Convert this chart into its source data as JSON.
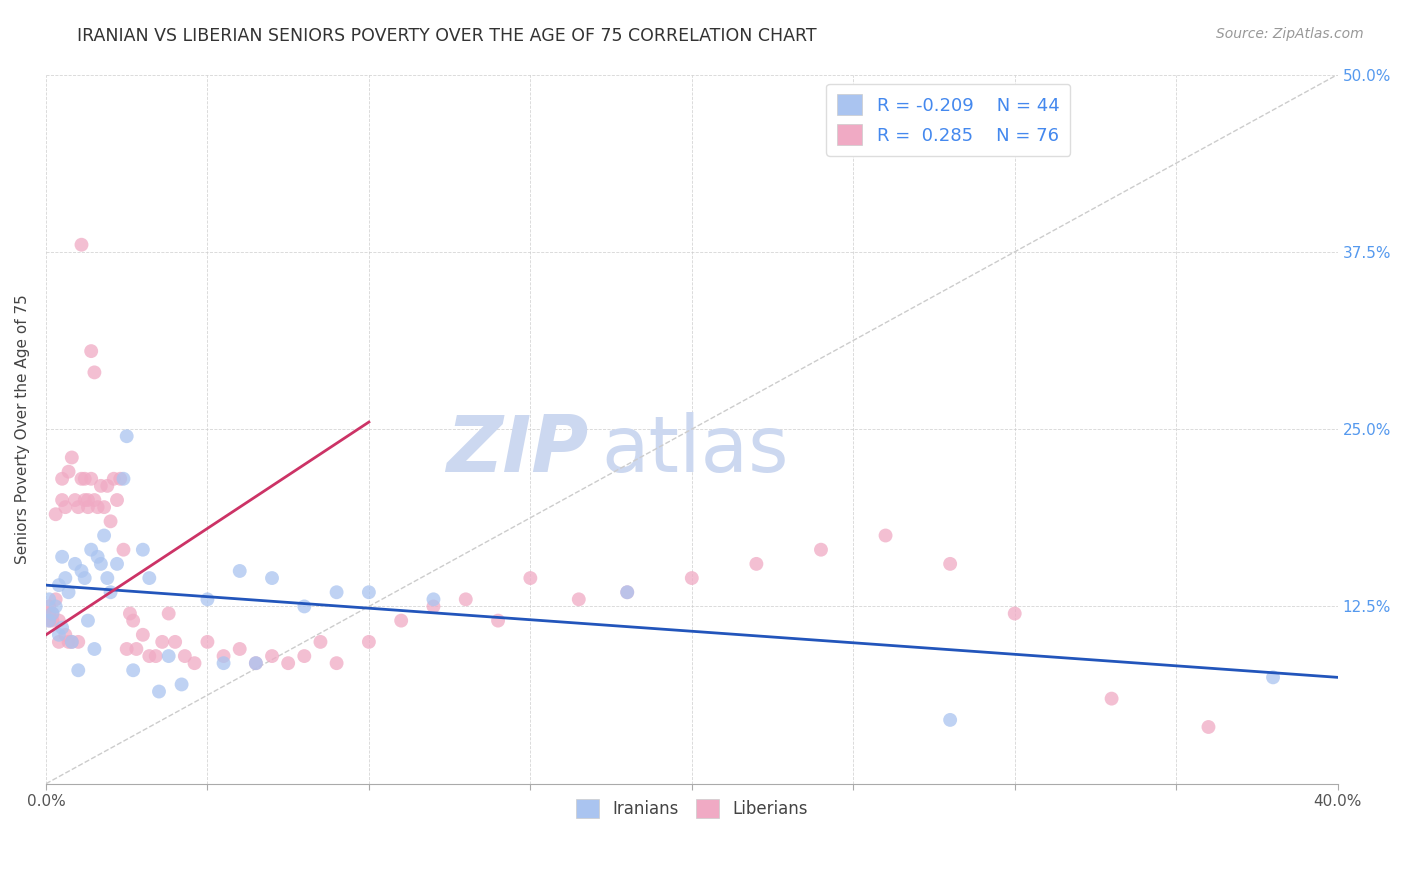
{
  "title": "IRANIAN VS LIBERIAN SENIORS POVERTY OVER THE AGE OF 75 CORRELATION CHART",
  "source": "Source: ZipAtlas.com",
  "ylabel": "Seniors Poverty Over the Age of 75",
  "xlim": [
    0.0,
    0.4
  ],
  "ylim": [
    0.0,
    0.5
  ],
  "xticks": [
    0.0,
    0.05,
    0.1,
    0.15,
    0.2,
    0.25,
    0.3,
    0.35,
    0.4
  ],
  "xticklabels": [
    "0.0%",
    "",
    "",
    "",
    "",
    "",
    "",
    "",
    "40.0%"
  ],
  "yticks": [
    0.0,
    0.125,
    0.25,
    0.375,
    0.5
  ],
  "yticklabels": [
    "",
    "12.5%",
    "25.0%",
    "37.5%",
    "50.0%"
  ],
  "legend_R_iranian": "-0.209",
  "legend_N_iranian": "44",
  "legend_R_liberian": "0.285",
  "legend_N_liberian": "76",
  "iranian_color": "#aac4f0",
  "liberian_color": "#f0aac4",
  "trend_iranian_color": "#2255bb",
  "trend_liberian_color": "#cc3366",
  "diagonal_color": "#cccccc",
  "watermark_color": "#ccd8f0",
  "iranians_x": [
    0.001,
    0.001,
    0.002,
    0.003,
    0.004,
    0.004,
    0.005,
    0.005,
    0.006,
    0.007,
    0.008,
    0.009,
    0.01,
    0.011,
    0.012,
    0.013,
    0.014,
    0.015,
    0.016,
    0.017,
    0.018,
    0.019,
    0.02,
    0.022,
    0.024,
    0.025,
    0.027,
    0.03,
    0.032,
    0.035,
    0.038,
    0.042,
    0.05,
    0.055,
    0.06,
    0.065,
    0.07,
    0.08,
    0.09,
    0.1,
    0.12,
    0.18,
    0.28,
    0.38
  ],
  "iranians_y": [
    0.13,
    0.115,
    0.12,
    0.125,
    0.105,
    0.14,
    0.11,
    0.16,
    0.145,
    0.135,
    0.1,
    0.155,
    0.08,
    0.15,
    0.145,
    0.115,
    0.165,
    0.095,
    0.16,
    0.155,
    0.175,
    0.145,
    0.135,
    0.155,
    0.215,
    0.245,
    0.08,
    0.165,
    0.145,
    0.065,
    0.09,
    0.07,
    0.13,
    0.085,
    0.15,
    0.085,
    0.145,
    0.125,
    0.135,
    0.135,
    0.13,
    0.135,
    0.045,
    0.075
  ],
  "liberians_x": [
    0.001,
    0.001,
    0.001,
    0.002,
    0.002,
    0.003,
    0.003,
    0.004,
    0.004,
    0.005,
    0.005,
    0.006,
    0.006,
    0.007,
    0.007,
    0.008,
    0.008,
    0.009,
    0.01,
    0.01,
    0.011,
    0.011,
    0.012,
    0.012,
    0.013,
    0.013,
    0.014,
    0.014,
    0.015,
    0.015,
    0.016,
    0.017,
    0.018,
    0.019,
    0.02,
    0.021,
    0.022,
    0.023,
    0.024,
    0.025,
    0.026,
    0.027,
    0.028,
    0.03,
    0.032,
    0.034,
    0.036,
    0.038,
    0.04,
    0.043,
    0.046,
    0.05,
    0.055,
    0.06,
    0.065,
    0.07,
    0.075,
    0.08,
    0.085,
    0.09,
    0.1,
    0.11,
    0.12,
    0.13,
    0.14,
    0.15,
    0.165,
    0.18,
    0.2,
    0.22,
    0.24,
    0.26,
    0.28,
    0.3,
    0.33,
    0.36
  ],
  "liberians_y": [
    0.115,
    0.12,
    0.125,
    0.115,
    0.12,
    0.13,
    0.19,
    0.1,
    0.115,
    0.2,
    0.215,
    0.105,
    0.195,
    0.1,
    0.22,
    0.23,
    0.1,
    0.2,
    0.1,
    0.195,
    0.215,
    0.38,
    0.2,
    0.215,
    0.195,
    0.2,
    0.215,
    0.305,
    0.2,
    0.29,
    0.195,
    0.21,
    0.195,
    0.21,
    0.185,
    0.215,
    0.2,
    0.215,
    0.165,
    0.095,
    0.12,
    0.115,
    0.095,
    0.105,
    0.09,
    0.09,
    0.1,
    0.12,
    0.1,
    0.09,
    0.085,
    0.1,
    0.09,
    0.095,
    0.085,
    0.09,
    0.085,
    0.09,
    0.1,
    0.085,
    0.1,
    0.115,
    0.125,
    0.13,
    0.115,
    0.145,
    0.13,
    0.135,
    0.145,
    0.155,
    0.165,
    0.175,
    0.155,
    0.12,
    0.06,
    0.04
  ],
  "trend_iranian_start_x": 0.0,
  "trend_iranian_end_x": 0.4,
  "trend_iranian_start_y": 0.14,
  "trend_iranian_end_y": 0.075,
  "trend_liberian_start_x": 0.0,
  "trend_liberian_start_y": 0.105,
  "trend_liberian_end_x": 0.1,
  "trend_liberian_end_y": 0.255
}
